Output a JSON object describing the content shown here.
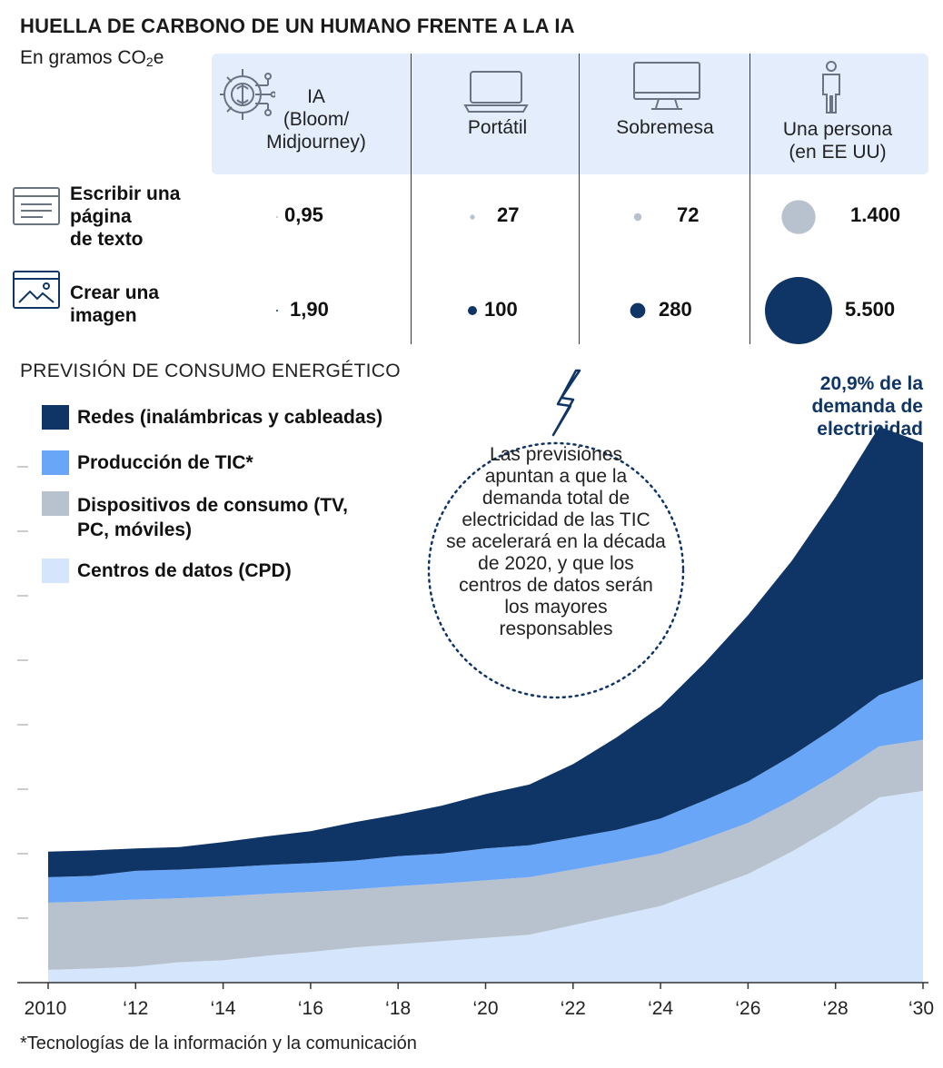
{
  "title": "HUELLA DE CARBONO DE UN HUMANO FRENTE A LA IA",
  "subtitle_main": "En gramos CO",
  "subtitle_sub": "2",
  "subtitle_tail": "e",
  "columns": [
    {
      "lines": [
        "IA",
        "(Bloom/",
        "Midjourney)"
      ],
      "icon": "ai-chip-icon"
    },
    {
      "lines": [
        "Portátil"
      ],
      "icon": "laptop-icon"
    },
    {
      "lines": [
        "Sobremesa"
      ],
      "icon": "desktop-monitor-icon"
    },
    {
      "lines": [
        "Una persona",
        "(en EE UU)"
      ],
      "icon": "person-icon"
    }
  ],
  "rows": [
    {
      "lines": [
        "Escribir una",
        "página",
        "de texto"
      ],
      "icon": "text-page-icon",
      "values": [
        0.95,
        27,
        72,
        1400
      ],
      "labels": [
        "0,95",
        "27",
        "72",
        "1.400"
      ]
    },
    {
      "lines": [
        "Crear una",
        "imagen"
      ],
      "icon": "image-icon",
      "values": [
        1.9,
        100,
        280,
        5500
      ],
      "labels": [
        "1,90",
        "100",
        "280",
        "5.500"
      ]
    }
  ],
  "colors": {
    "navy": "#0f3466",
    "blue": "#6aa6f8",
    "gray": "#b8c1ce",
    "light": "#d4e5fc",
    "band": "#e3edfb",
    "bubble_text_row": "#b8c1ce",
    "bubble_image_row": "#0f3466"
  },
  "section_title": "PREVISIÓN DE CONSUMO ENERGÉTICO",
  "annotation_right": [
    "20,9% de la",
    "demanda de",
    "electricidad"
  ],
  "circle_note": [
    "Las previsiones",
    "apuntan a que la",
    "demanda total de",
    "electricidad de las TIC",
    "se acelerará en la década",
    "de 2020, y que los",
    "centros de datos serán",
    "los mayores",
    "responsables"
  ],
  "footnote": "*Tecnologías de la información y la comunicación",
  "chart_data": {
    "type": "area",
    "stacked": true,
    "x": [
      2010,
      2011,
      2012,
      2013,
      2014,
      2015,
      2016,
      2017,
      2018,
      2019,
      2020,
      2021,
      2022,
      2023,
      2024,
      2025,
      2026,
      2027,
      2028,
      2029,
      2030
    ],
    "x_tick_labels": [
      "2010",
      "‘12",
      "‘14",
      "‘16",
      "‘18",
      "‘20",
      "‘22",
      "‘24",
      "‘26",
      "‘28",
      "‘30"
    ],
    "x_tick_values": [
      2010,
      2012,
      2014,
      2016,
      2018,
      2020,
      2022,
      2024,
      2026,
      2028,
      2030
    ],
    "ylim": [
      0,
      8.3
    ],
    "series": [
      {
        "name": "Centros de datos (CPD)",
        "color": "#d4e5fc",
        "values": [
          0.2,
          0.22,
          0.25,
          0.32,
          0.35,
          0.42,
          0.48,
          0.55,
          0.6,
          0.65,
          0.7,
          0.75,
          0.9,
          1.05,
          1.2,
          1.45,
          1.7,
          2.05,
          2.45,
          2.9,
          3.0
        ]
      },
      {
        "name": "Dispositivos de consumo (TV, PC, móviles)",
        "color": "#b8c1ce",
        "values": [
          1.05,
          1.05,
          1.05,
          1.0,
          1.0,
          0.97,
          0.94,
          0.91,
          0.91,
          0.9,
          0.9,
          0.9,
          0.87,
          0.84,
          0.82,
          0.8,
          0.8,
          0.8,
          0.8,
          0.8,
          0.8
        ]
      },
      {
        "name": "Producción de TIC*",
        "color": "#6aa6f8",
        "values": [
          0.4,
          0.4,
          0.45,
          0.45,
          0.45,
          0.45,
          0.45,
          0.45,
          0.47,
          0.47,
          0.5,
          0.5,
          0.5,
          0.5,
          0.55,
          0.6,
          0.65,
          0.7,
          0.75,
          0.8,
          0.95
        ]
      },
      {
        "name": "Redes (inalámbricas y cableadas)",
        "color": "#0f3466",
        "values": [
          0.4,
          0.4,
          0.35,
          0.35,
          0.4,
          0.45,
          0.5,
          0.6,
          0.65,
          0.75,
          0.85,
          0.95,
          1.15,
          1.45,
          1.75,
          2.15,
          2.6,
          3.05,
          3.6,
          4.2,
          3.7
        ]
      }
    ]
  }
}
